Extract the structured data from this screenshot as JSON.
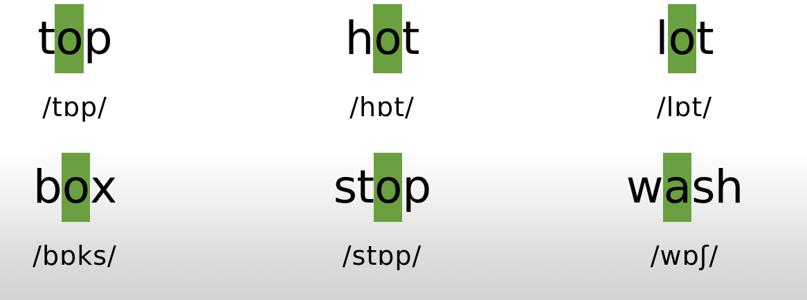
{
  "highlight_color": "#6aa040",
  "words": [
    {
      "pre": "t",
      "vowel": "o",
      "post": "p",
      "ipa": "/tɒp/"
    },
    {
      "pre": "h",
      "vowel": "o",
      "post": "t",
      "ipa": "/hɒt/"
    },
    {
      "pre": "l",
      "vowel": "o",
      "post": "t",
      "ipa": "/lɒt/"
    },
    {
      "pre": "b",
      "vowel": "o",
      "post": "x",
      "ipa": "/bɒks/"
    },
    {
      "pre": "st",
      "vowel": "o",
      "post": "p",
      "ipa": "/stɒp/"
    },
    {
      "pre": "w",
      "vowel": "a",
      "post": "sh",
      "ipa": "/wɒʃ/"
    }
  ]
}
